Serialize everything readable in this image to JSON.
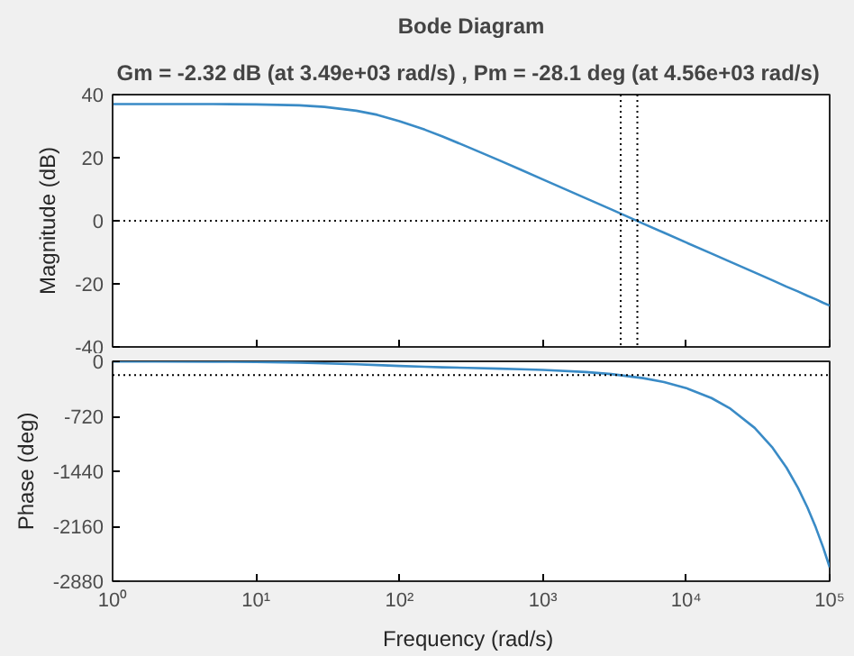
{
  "chart_data": [
    {
      "type": "line",
      "title": "Bode Diagram",
      "subtitle": "Gm = -2.32 dB (at 3.49e+03 rad/s) ,  Pm = -28.1 deg (at 4.56e+03 rad/s)",
      "ylabel": "Magnitude (dB)",
      "log": "x",
      "x": [
        1,
        2,
        5,
        10,
        20,
        30,
        50,
        70,
        100,
        150,
        200,
        300,
        500,
        700,
        1000,
        2000,
        3000,
        5000,
        7000,
        10000,
        15000,
        20000,
        30000,
        40000,
        50000,
        60000,
        70000,
        80000,
        90000,
        100000
      ],
      "series": [
        {
          "color": "#3a8bc6",
          "values": [
            37.0,
            37.0,
            37.0,
            36.9,
            36.6,
            36.1,
            34.9,
            33.6,
            31.6,
            28.9,
            26.7,
            23.4,
            19.1,
            16.2,
            13.1,
            7.1,
            3.6,
            -0.9,
            -3.8,
            -6.9,
            -10.4,
            -12.9,
            -16.4,
            -18.9,
            -20.9,
            -22.4,
            -23.8,
            -24.9,
            -26.0,
            -26.9
          ]
        }
      ],
      "xlim": [
        1,
        100000
      ],
      "ylim": [
        -40,
        40
      ],
      "yticks": [
        -40,
        -20,
        0,
        20,
        40
      ],
      "xticks": [
        {
          "value": 1,
          "label": null
        },
        {
          "value": 10,
          "label": null
        },
        {
          "value": 100,
          "label": null
        },
        {
          "value": 1000,
          "label": null
        },
        {
          "value": 10000,
          "label": null
        },
        {
          "value": 100000,
          "label": null
        }
      ],
      "tick_labels": "y",
      "grid": false,
      "ref_lines": [
        {
          "axis": "y",
          "value": 0,
          "line_style": "dotted",
          "color": "#000000"
        },
        {
          "axis": "x",
          "value": 3490,
          "line_style": "dotted",
          "color": "#000000"
        },
        {
          "axis": "x",
          "value": 4560,
          "line_style": "dotted",
          "color": "#000000"
        }
      ]
    },
    {
      "type": "line",
      "xlabel": "Frequency  (rad/s)",
      "ylabel": "Phase (deg)",
      "log": "x",
      "x": [
        1,
        2,
        5,
        10,
        20,
        30,
        50,
        70,
        100,
        150,
        200,
        300,
        500,
        700,
        1000,
        2000,
        3000,
        5000,
        7000,
        10000,
        15000,
        20000,
        30000,
        40000,
        50000,
        60000,
        70000,
        80000,
        90000,
        100000
      ],
      "series": [
        {
          "color": "#3a8bc6",
          "values": [
            -1,
            -2,
            -5,
            -9,
            -18,
            -26,
            -39,
            -49,
            -60,
            -71,
            -78,
            -86,
            -96,
            -103,
            -112,
            -140,
            -167,
            -220,
            -272,
            -350,
            -481,
            -611,
            -872,
            -1133,
            -1393,
            -1654,
            -1915,
            -2176,
            -2436,
            -2697
          ]
        }
      ],
      "xlim": [
        1,
        100000
      ],
      "ylim": [
        -2880,
        0
      ],
      "yticks": [
        -2880,
        -2160,
        -1440,
        -720,
        0
      ],
      "xticks": [
        {
          "value": 1,
          "label": "10⁰"
        },
        {
          "value": 10,
          "label": "10¹"
        },
        {
          "value": 100,
          "label": "10²"
        },
        {
          "value": 1000,
          "label": "10³"
        },
        {
          "value": 10000,
          "label": "10⁴"
        },
        {
          "value": 100000,
          "label": "10⁵"
        }
      ],
      "grid": false,
      "ref_lines": [
        {
          "axis": "y",
          "value": -180,
          "line_style": "dotted",
          "color": "#000000"
        }
      ]
    }
  ]
}
